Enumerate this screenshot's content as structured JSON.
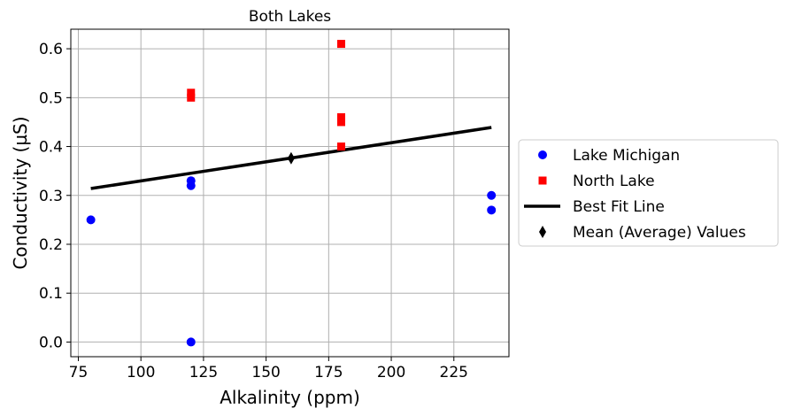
{
  "chart_data": {
    "type": "scatter",
    "title": "Both Lakes",
    "xlabel": "Alkalinity (ppm)",
    "ylabel": "Conductivity (µS)",
    "xlim": [
      72,
      247
    ],
    "ylim": [
      -0.03,
      0.64
    ],
    "xticks": [
      75,
      100,
      125,
      150,
      175,
      200,
      225
    ],
    "yticks": [
      0.0,
      0.1,
      0.2,
      0.3,
      0.4,
      0.5,
      0.6
    ],
    "xtick_labels": [
      "75",
      "100",
      "125",
      "150",
      "175",
      "200",
      "225"
    ],
    "ytick_labels": [
      "0.0",
      "0.1",
      "0.2",
      "0.3",
      "0.4",
      "0.5",
      "0.6"
    ],
    "grid": true,
    "legend_position": "outside-right",
    "series": [
      {
        "name": "Lake Michigan",
        "marker": "circle",
        "color": "#0000ff",
        "points": [
          {
            "x": 80,
            "y": 0.25
          },
          {
            "x": 120,
            "y": 0.33
          },
          {
            "x": 120,
            "y": 0.32
          },
          {
            "x": 120,
            "y": 0.0
          },
          {
            "x": 240,
            "y": 0.3
          },
          {
            "x": 240,
            "y": 0.27
          }
        ]
      },
      {
        "name": "North Lake",
        "marker": "square",
        "color": "#ff0000",
        "points": [
          {
            "x": 120,
            "y": 0.51
          },
          {
            "x": 120,
            "y": 0.5
          },
          {
            "x": 180,
            "y": 0.61
          },
          {
            "x": 180,
            "y": 0.46
          },
          {
            "x": 180,
            "y": 0.45
          },
          {
            "x": 180,
            "y": 0.4
          }
        ]
      },
      {
        "name": "Best Fit Line",
        "marker": "line",
        "color": "#000000",
        "points": [
          {
            "x": 80,
            "y": 0.314
          },
          {
            "x": 240,
            "y": 0.439
          }
        ]
      },
      {
        "name": "Mean (Average) Values",
        "marker": "diamond",
        "color": "#000000",
        "points": [
          {
            "x": 160,
            "y": 0.376
          }
        ]
      }
    ]
  }
}
